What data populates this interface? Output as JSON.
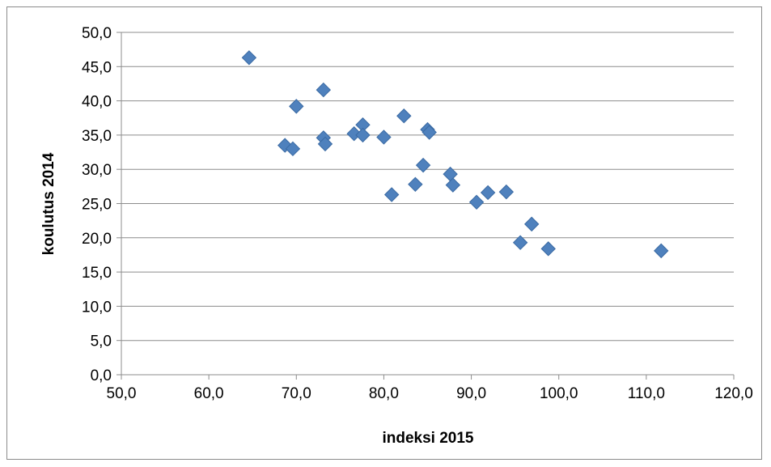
{
  "chart_data": {
    "type": "scatter",
    "xlabel": "indeksi 2015",
    "ylabel": "koulutus 2014",
    "xlim": [
      50,
      120
    ],
    "ylim": [
      0,
      50
    ],
    "x_ticks": [
      "50,0",
      "60,0",
      "70,0",
      "80,0",
      "90,0",
      "100,0",
      "110,0",
      "120,0"
    ],
    "y_ticks": [
      "0,0",
      "5,0",
      "10,0",
      "15,0",
      "20,0",
      "25,0",
      "30,0",
      "35,0",
      "40,0",
      "45,0",
      "50,0"
    ],
    "grid": "horizontal",
    "legend": "none",
    "marker": "diamond",
    "marker_color": "#4f81bd",
    "points": [
      {
        "x": 64.6,
        "y": 46.3
      },
      {
        "x": 68.7,
        "y": 33.5
      },
      {
        "x": 69.6,
        "y": 33.0
      },
      {
        "x": 70.0,
        "y": 39.2
      },
      {
        "x": 73.1,
        "y": 41.6
      },
      {
        "x": 73.1,
        "y": 34.6
      },
      {
        "x": 73.3,
        "y": 33.7
      },
      {
        "x": 76.6,
        "y": 35.2
      },
      {
        "x": 77.6,
        "y": 36.5
      },
      {
        "x": 77.6,
        "y": 35.0
      },
      {
        "x": 80.0,
        "y": 34.7
      },
      {
        "x": 80.9,
        "y": 26.3
      },
      {
        "x": 82.3,
        "y": 37.8
      },
      {
        "x": 83.6,
        "y": 27.8
      },
      {
        "x": 84.5,
        "y": 30.6
      },
      {
        "x": 85.0,
        "y": 35.8
      },
      {
        "x": 85.2,
        "y": 35.4
      },
      {
        "x": 87.6,
        "y": 29.3
      },
      {
        "x": 87.9,
        "y": 27.7
      },
      {
        "x": 90.6,
        "y": 25.2
      },
      {
        "x": 91.9,
        "y": 26.6
      },
      {
        "x": 94.0,
        "y": 26.7
      },
      {
        "x": 95.6,
        "y": 19.3
      },
      {
        "x": 96.9,
        "y": 22.0
      },
      {
        "x": 98.8,
        "y": 18.4
      },
      {
        "x": 111.7,
        "y": 18.1
      }
    ]
  }
}
